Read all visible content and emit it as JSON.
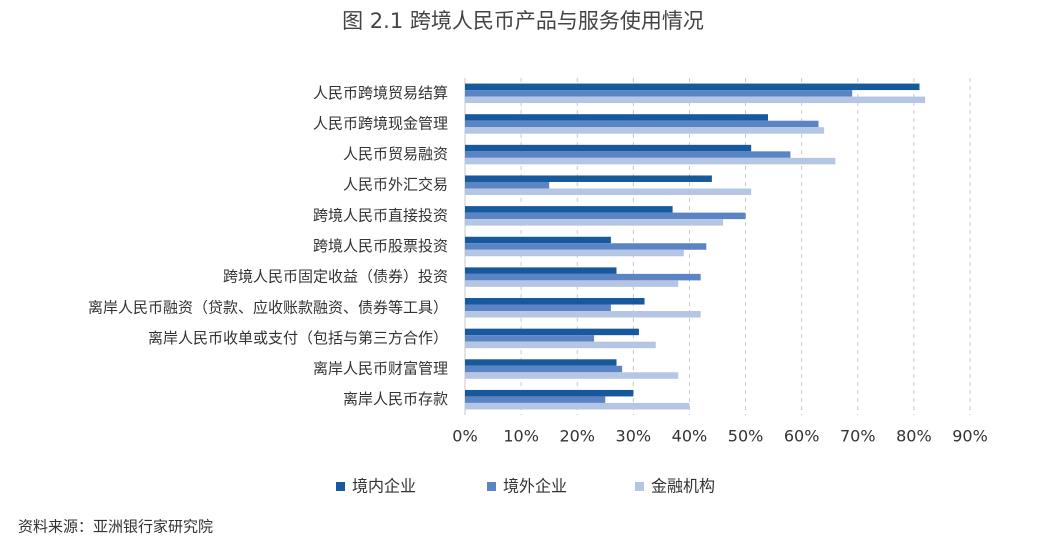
{
  "chart_data": {
    "type": "hbar",
    "title": "图 2.1  跨境人民币产品与服务使用情况",
    "categories": [
      "人民币跨境贸易结算",
      "人民币跨境现金管理",
      "人民币贸易融资",
      "人民币外汇交易",
      "跨境人民币直接投资",
      "跨境人民币股票投资",
      "跨境人民币固定收益（债券）投资",
      "离岸人民币融资（贷款、应收账款融资、债券等工具）",
      "离岸人民币收单或支付（包括与第三方合作）",
      "离岸人民币财富管理",
      "离岸人民币存款"
    ],
    "series": [
      {
        "name": "境内企业",
        "color": "#16599c",
        "values": [
          81,
          54,
          51,
          44,
          37,
          26,
          27,
          32,
          31,
          27,
          30
        ]
      },
      {
        "name": "境外企业",
        "color": "#5b84c4",
        "values": [
          69,
          63,
          58,
          15,
          50,
          43,
          42,
          26,
          23,
          28,
          25
        ]
      },
      {
        "name": "金融机构",
        "color": "#b5c6e4",
        "values": [
          82,
          64,
          66,
          51,
          46,
          39,
          38,
          42,
          34,
          38,
          40
        ]
      }
    ],
    "xlim": [
      0,
      90
    ],
    "xticks": [
      {
        "value": 0,
        "label": "0%"
      },
      {
        "value": 10,
        "label": "10%"
      },
      {
        "value": 20,
        "label": "20%"
      },
      {
        "value": 30,
        "label": "30%"
      },
      {
        "value": 40,
        "label": "40%"
      },
      {
        "value": 50,
        "label": "50%"
      },
      {
        "value": 60,
        "label": "60%"
      },
      {
        "value": 70,
        "label": "70%"
      },
      {
        "value": 80,
        "label": "80%"
      },
      {
        "value": 90,
        "label": "90%"
      }
    ],
    "grid": true,
    "legend": "bottom",
    "source": "资料来源：亚洲银行家研究院"
  }
}
